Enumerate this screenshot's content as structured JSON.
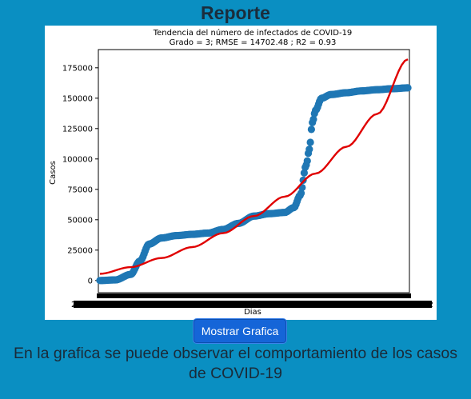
{
  "page": {
    "title": "Reporte"
  },
  "button": {
    "label": "Mostrar Grafica"
  },
  "caption": "En la grafica se puede observar el comportamiento de los casos de COVID-19",
  "colors": {
    "background": "#0a8fc2",
    "data_series": "#1f77b4",
    "trend": "#e00000",
    "button": "#1565d8"
  },
  "chart_data": {
    "type": "scatter",
    "title": "Tendencia del número de infectados de COVID-19",
    "subtitle": "Grado = 3; RMSE = 14702.48 ; R2 = 0.93",
    "xlabel": "Dias",
    "ylabel": "Casos",
    "ylim": [
      -10000,
      190000
    ],
    "yticks": [
      0,
      25000,
      50000,
      75000,
      100000,
      125000,
      150000,
      175000
    ],
    "x_tick_labels_overlapping": true,
    "x_tick_label_first": "2",
    "x_tick_label_last": "2",
    "grid": false,
    "series": [
      {
        "marker": "circle",
        "x": [
          0,
          0.05,
          0.1,
          0.13,
          0.16,
          0.2,
          0.25,
          0.3,
          0.35,
          0.4,
          0.45,
          0.5,
          0.55,
          0.6,
          0.63,
          0.65,
          0.67,
          0.68,
          0.69,
          0.7,
          0.72,
          0.75,
          0.8,
          0.85,
          0.9,
          0.95,
          1.0
        ],
        "values": [
          0,
          500,
          5000,
          16000,
          30000,
          35000,
          37000,
          38000,
          39000,
          42000,
          47000,
          53000,
          55000,
          56000,
          60000,
          70000,
          95000,
          108000,
          130000,
          140000,
          150000,
          153000,
          154500,
          156000,
          157000,
          157800,
          158500
        ]
      },
      {
        "name": "",
        "type": "line",
        "x": [
          0,
          0.1,
          0.2,
          0.3,
          0.4,
          0.5,
          0.6,
          0.7,
          0.8,
          0.9,
          1.0
        ],
        "values": [
          5500,
          11000,
          18500,
          27500,
          39000,
          53000,
          69000,
          88000,
          110000,
          137000,
          182000
        ]
      }
    ]
  }
}
